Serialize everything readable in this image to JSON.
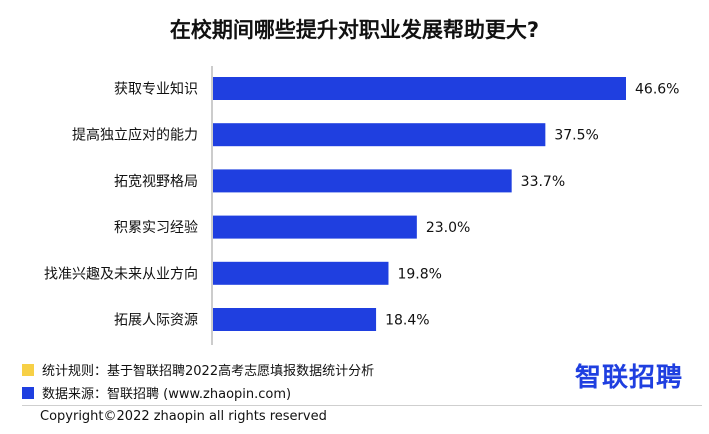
{
  "chart_data": {
    "type": "bar",
    "orientation": "horizontal",
    "title": "在校期间哪些提升对职业发展帮助更大?",
    "categories": [
      "获取专业知识",
      "提高独立应对的能力",
      "拓宽视野格局",
      "积累实习经验",
      "找准兴趣及未来从业方向",
      "拓展人际资源"
    ],
    "values": [
      46.6,
      37.5,
      33.7,
      23.0,
      19.8,
      18.4
    ],
    "value_labels": [
      "46.6%",
      "37.5%",
      "33.7%",
      "23.0%",
      "19.8%",
      "18.4%"
    ],
    "xlim": [
      0,
      50
    ],
    "grid": false,
    "bar_color": "#1f3fe0"
  },
  "notes": {
    "rule": "统计规则：基于智联招聘2022高考志愿填报数据统计分析",
    "rule_color": "#f7d046",
    "source": "数据来源：智联招聘 (www.zhaopin.com)",
    "source_color": "#1f3fe0"
  },
  "brand": "智联招聘",
  "copyright": "Copyright©2022 zhaopin all rights reserved"
}
